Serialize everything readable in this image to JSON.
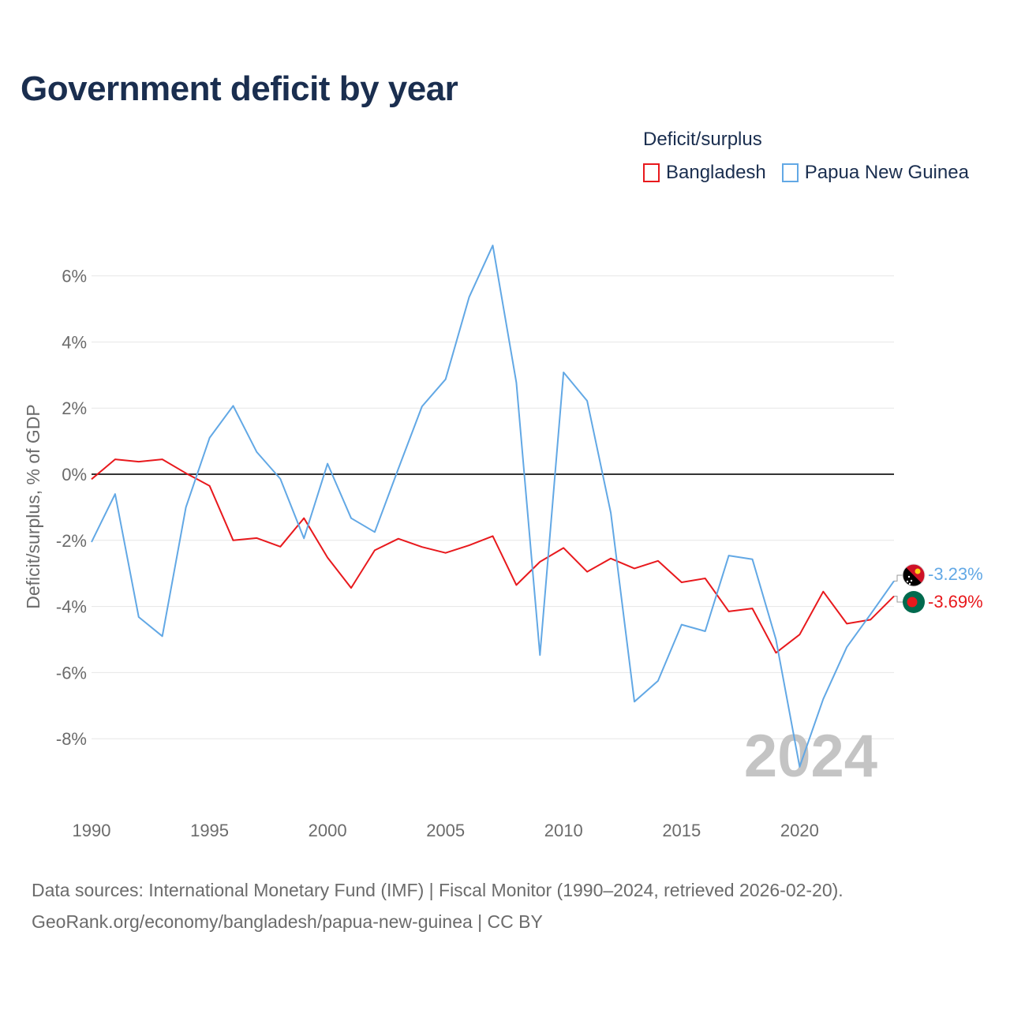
{
  "title": "Government deficit by year",
  "legend": {
    "title": "Deficit/surplus",
    "items": [
      {
        "label": "Bangladesh",
        "color": "#e8191d"
      },
      {
        "label": "Papua New Guinea",
        "color": "#62a8e5"
      }
    ]
  },
  "chart_data": {
    "type": "line",
    "ylabel": "Deficit/surplus, % of GDP",
    "xlabel": "",
    "ylim": [
      -10,
      7
    ],
    "xlim": [
      1990,
      2024
    ],
    "y_ticks": [
      6,
      4,
      2,
      0,
      -2,
      -4,
      -6,
      -8
    ],
    "y_tick_labels": [
      "6%",
      "4%",
      "2%",
      "0%",
      "-2%",
      "-4%",
      "-6%",
      "-8%"
    ],
    "x_ticks": [
      1990,
      1995,
      2000,
      2005,
      2010,
      2015,
      2020
    ],
    "x_tick_labels": [
      "1990",
      "1995",
      "2000",
      "2005",
      "2010",
      "2015",
      "2020"
    ],
    "year_watermark": "2024",
    "x": [
      1990,
      1991,
      1992,
      1993,
      1994,
      1995,
      1996,
      1997,
      1998,
      1999,
      2000,
      2001,
      2002,
      2003,
      2004,
      2005,
      2006,
      2007,
      2008,
      2009,
      2010,
      2011,
      2012,
      2013,
      2014,
      2015,
      2016,
      2017,
      2018,
      2019,
      2020,
      2021,
      2022,
      2023,
      2024
    ],
    "series": [
      {
        "name": "Bangladesh",
        "color": "#e8191d",
        "end_label": "-3.69%",
        "values": [
          -0.15,
          0.45,
          0.38,
          0.45,
          0.03,
          -0.35,
          -2.0,
          -1.93,
          -2.19,
          -1.33,
          -2.52,
          -3.44,
          -2.3,
          -1.95,
          -2.2,
          -2.38,
          -2.15,
          -1.87,
          -3.35,
          -2.65,
          -2.23,
          -2.95,
          -2.55,
          -2.85,
          -2.62,
          -3.27,
          -3.15,
          -4.15,
          -4.06,
          -5.4,
          -4.85,
          -3.55,
          -4.52,
          -4.4,
          -3.69
        ]
      },
      {
        "name": "Papua New Guinea",
        "color": "#62a8e5",
        "end_label": "-3.23%",
        "values": [
          -2.05,
          -0.6,
          -4.32,
          -4.9,
          -1.0,
          1.1,
          2.07,
          0.67,
          -0.14,
          -1.94,
          0.32,
          -1.33,
          -1.75,
          0.17,
          2.05,
          2.87,
          5.36,
          6.92,
          2.77,
          -5.47,
          3.08,
          2.22,
          -1.17,
          -6.88,
          -6.25,
          -4.55,
          -4.75,
          -2.46,
          -2.57,
          -5.0,
          -8.85,
          -6.8,
          -5.23,
          -4.24,
          -3.23
        ]
      }
    ]
  },
  "source": {
    "line1": "Data sources: International Monetary Fund (IMF) | Fiscal Monitor (1990–2024, retrieved 2026-02-20).",
    "line2": "GeoRank.org/economy/bangladesh/papua-new-guinea | CC BY"
  }
}
